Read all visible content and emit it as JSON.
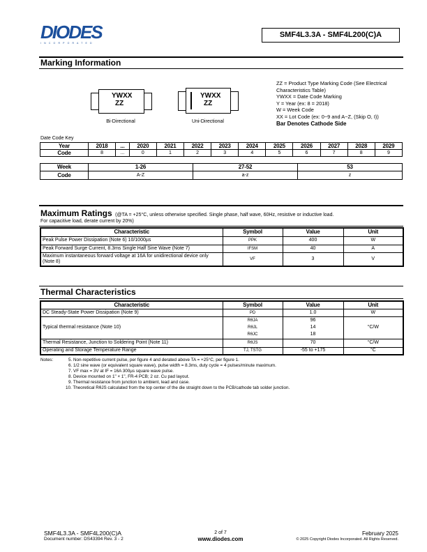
{
  "header": {
    "logo_text": "DIODES",
    "logo_sub": "I N C O R P O R A T E D",
    "logo_color": "#1b4f9c",
    "part_title": "SMF4L3.3A - SMF4L200(C)A"
  },
  "marking": {
    "title": "Marking Information",
    "bi": {
      "line1": "YWXX",
      "line2": "ZZ",
      "label": "Bi-Directional"
    },
    "uni": {
      "line1": "YWXX",
      "line2": "ZZ",
      "label": "Uni-Directional"
    },
    "legend": [
      "ZZ = Product Type Marking Code (See Electrical",
      "Characteristics Table)",
      "YWXX = Date Code Marking",
      "Y = Year (ex: 8 = 2018)",
      "W = Week Code",
      "XX = Lot Code (ex: 0~9 and A~Z, (Skip O, I))"
    ],
    "legend_bold": "Bar Denotes Cathode Side",
    "date_code_key": "Date Code Key",
    "year_table": {
      "row1_label": "Year",
      "row2_label": "Code",
      "years": [
        "2018",
        "...",
        "2020",
        "2021",
        "2022",
        "2023",
        "2024",
        "2025",
        "2026",
        "2027",
        "2028",
        "2029"
      ],
      "codes": [
        "8",
        "...",
        "0",
        "1",
        "2",
        "3",
        "4",
        "5",
        "6",
        "7",
        "8",
        "9"
      ]
    },
    "week_table": {
      "row1_label": "Week",
      "row2_label": "Code",
      "weeks": [
        "1-26",
        "27-52",
        "53"
      ],
      "codes": [
        "A-Z",
        "a-z",
        "z"
      ]
    }
  },
  "max_ratings": {
    "title": "Maximum Ratings",
    "cond": "(@TA = +25°C, unless otherwise specified. Single phase, half wave, 60Hz, resistive or inductive load.",
    "cond2": "For capacitive load, derate current by 20%)",
    "headers": [
      "Characteristic",
      "Symbol",
      "Value",
      "Unit"
    ],
    "rows": [
      [
        "Peak Pulse Power Dissipation (Note 6) 10/1000µs",
        "PPK",
        "400",
        "W"
      ],
      [
        "Peak Forward Surge Current, 8.3ms Single Half Sine Wave (Note 7)",
        "IFSM",
        "40",
        "A"
      ],
      [
        "Maximum instantaneous forward voltage at 16A for unidirectional device only (Note 8)",
        "VF",
        "3",
        "V"
      ]
    ]
  },
  "thermal": {
    "title": "Thermal Characteristics",
    "headers": [
      "Characteristic",
      "Symbol",
      "Value",
      "Unit"
    ],
    "rows": [
      {
        "char": "DC Steady-State Power Dissipation (Note 9)",
        "sym": [
          "PD"
        ],
        "val": [
          "1.0"
        ],
        "unit": "W"
      },
      {
        "char": "Typical thermal resistance (Note 10)",
        "sym": [
          "RθJA",
          "RθJL",
          "RθJC"
        ],
        "val": [
          "96",
          "14",
          "18"
        ],
        "unit": "°C/W"
      },
      {
        "char": "Thermal Resistance, Junction to Soldering Point (Note 11)",
        "sym": [
          "RθJS"
        ],
        "val": [
          "70"
        ],
        "unit": "°C/W"
      },
      {
        "char": "Operating and Storage Temperature Range",
        "sym": [
          "TJ, TSTG"
        ],
        "val": [
          "-55 to +175"
        ],
        "unit": "°C"
      }
    ]
  },
  "notes": {
    "label": "Notes:",
    "items": [
      "5. Non-repetitive current pulse, per figure 4 and derated above TA = +25°C, per figure 1.",
      "6. 1/2 sine wave (or equivalent square wave), pulse width = 8.3ms, duty cycle = 4 pulses/minute maximum.",
      "7. VF max = 3V at IF = 16A 300µs square wave pulse.",
      "8. Device mounted on 1\" × 1\", FR-4 PCB; 2 oz. Cu pad layout.",
      "9. Thermal resistance from junction to ambient, lead and case.",
      "10. Theoretical RθJS calculated from the top center of the die straight down to the PCB/cathode tab solder junction."
    ]
  },
  "footer": {
    "part": "SMF4L3.3A - SMF4L200(C)A",
    "doc": "Document number: DS43394 Rev. 3 - 2",
    "page": "2 of 7",
    "url": "www.diodes.com",
    "date": "February 2025",
    "copyright": "© 2025 Copyright Diodes Incorporated. All Rights Reserved."
  }
}
